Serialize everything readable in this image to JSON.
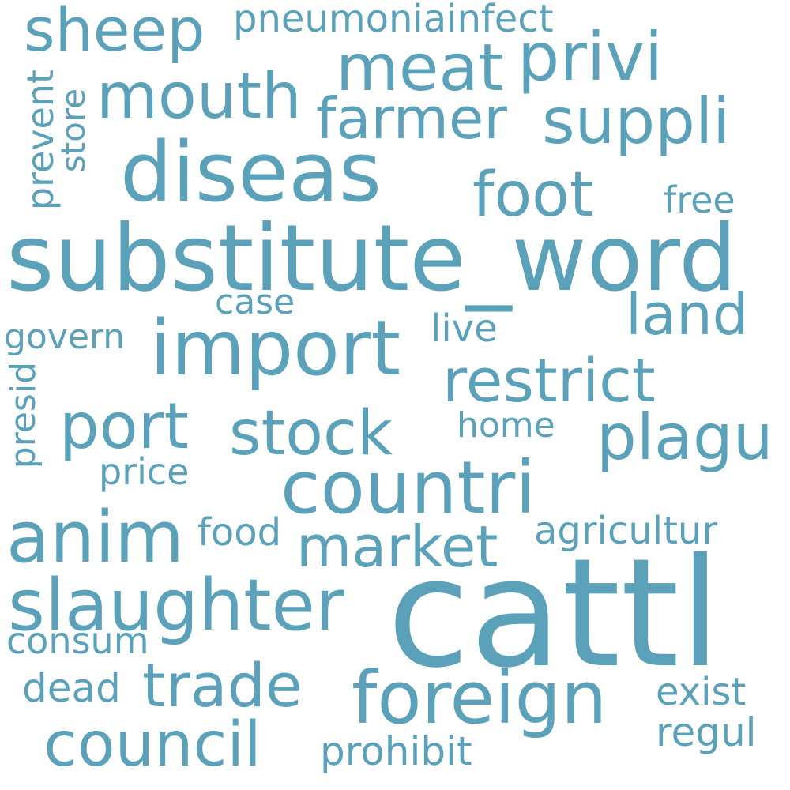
{
  "colors": {
    "background": "#ffffff",
    "word": "#5ba1b9"
  },
  "words": [
    {
      "text": "cattl"
    },
    {
      "text": "substitute_word"
    },
    {
      "text": "diseas"
    },
    {
      "text": "import"
    },
    {
      "text": "countri"
    },
    {
      "text": "foreign"
    },
    {
      "text": "anim"
    },
    {
      "text": "slaughter"
    },
    {
      "text": "meat"
    },
    {
      "text": "privi"
    },
    {
      "text": "mouth"
    },
    {
      "text": "sheep"
    },
    {
      "text": "farmer"
    },
    {
      "text": "suppli"
    },
    {
      "text": "foot"
    },
    {
      "text": "restrict"
    },
    {
      "text": "port"
    },
    {
      "text": "stock"
    },
    {
      "text": "plagu"
    },
    {
      "text": "market"
    },
    {
      "text": "trade"
    },
    {
      "text": "council"
    },
    {
      "text": "land"
    },
    {
      "text": "prohibit"
    },
    {
      "text": "pneumoniainfect"
    },
    {
      "text": "free"
    },
    {
      "text": "case"
    },
    {
      "text": "live"
    },
    {
      "text": "govern"
    },
    {
      "text": "home"
    },
    {
      "text": "price"
    },
    {
      "text": "food"
    },
    {
      "text": "agricultur"
    },
    {
      "text": "consum"
    },
    {
      "text": "dead"
    },
    {
      "text": "exist"
    },
    {
      "text": "regul"
    },
    {
      "text": "prevent"
    },
    {
      "text": "store"
    },
    {
      "text": "presid"
    }
  ]
}
